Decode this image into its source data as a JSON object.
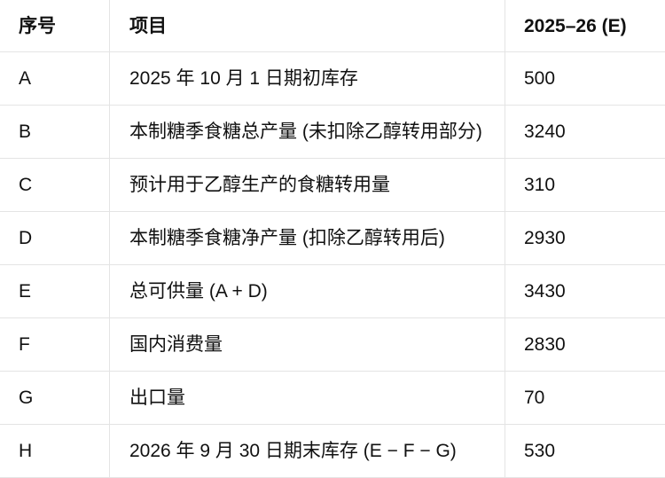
{
  "colors": {
    "background": "#ffffff",
    "border": "#e4e4e4",
    "text": "#111111"
  },
  "table": {
    "headers": [
      "序号",
      "项目",
      "2025–26 (E)"
    ],
    "rows": [
      {
        "id": "A",
        "item": "2025 年 10 月 1 日期初库存",
        "value": "500"
      },
      {
        "id": "B",
        "item": "本制糖季食糖总产量 (未扣除乙醇转用部分)",
        "value": "3240"
      },
      {
        "id": "C",
        "item": "预计用于乙醇生产的食糖转用量",
        "value": "310"
      },
      {
        "id": "D",
        "item": "本制糖季食糖净产量 (扣除乙醇转用后)",
        "value": "2930"
      },
      {
        "id": "E",
        "item": "总可供量 (A + D)",
        "value": "3430"
      },
      {
        "id": "F",
        "item": "国内消费量",
        "value": "2830"
      },
      {
        "id": "G",
        "item": "出口量",
        "value": "70"
      },
      {
        "id": "H",
        "item": "2026 年 9 月 30 日期末库存 (E − F − G)",
        "value": "530"
      }
    ]
  },
  "chart_data": {
    "type": "table",
    "columns": [
      "序号",
      "项目",
      "2025–26 (E)"
    ],
    "rows": [
      [
        "A",
        "2025 年 10 月 1 日期初库存",
        500
      ],
      [
        "B",
        "本制糖季食糖总产量 (未扣除乙醇转用部分)",
        3240
      ],
      [
        "C",
        "预计用于乙醇生产的食糖转用量",
        310
      ],
      [
        "D",
        "本制糖季食糖净产量 (扣除乙醇转用后)",
        2930
      ],
      [
        "E",
        "总可供量 (A + D)",
        3430
      ],
      [
        "F",
        "国内消费量",
        2830
      ],
      [
        "G",
        "出口量",
        70
      ],
      [
        "H",
        "2026 年 9 月 30 日期末库存 (E − F − G)",
        530
      ]
    ],
    "notes": "Sugar season supply-demand balance table, single estimate column 2025–26 (E)"
  }
}
